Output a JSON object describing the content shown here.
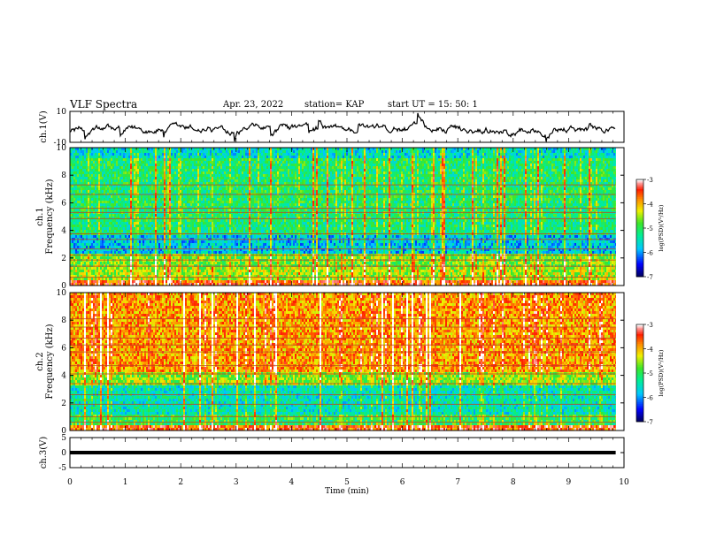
{
  "header": {
    "title": "VLF Spectra",
    "date": "Apr. 23, 2022",
    "station": "station= KAP",
    "start": "start  UT =   15: 50: 1"
  },
  "chart_data": [
    {
      "type": "line",
      "panel": "ch1-waveform",
      "ylabel": "ch.1(V)",
      "ylim": [
        -10,
        10
      ],
      "yticks": [
        "10",
        "-10"
      ],
      "xlim": [
        0,
        10
      ],
      "x_end": 9.85
    },
    {
      "type": "heatmap",
      "panel": "ch1-spectrogram",
      "ylabel_top": "ch.1",
      "ylabel": "Frequency (kHz)",
      "ylim": [
        0,
        10
      ],
      "yticks": [
        "0",
        "2",
        "4",
        "6",
        "8",
        "10"
      ],
      "xlim": [
        0,
        10
      ],
      "x_end": 9.85,
      "line_frequencies_khz": [
        0.6,
        1.4,
        1.85,
        2.2,
        2.65,
        3.35,
        3.75,
        4.85,
        5.3,
        5.6,
        6.6,
        7.3
      ],
      "colorbar": {
        "label": "log(PSD)(V²/Hz)",
        "range": [
          -7,
          -3
        ],
        "ticks": [
          "-3",
          "-4",
          "-5",
          "-6",
          "-7"
        ]
      }
    },
    {
      "type": "heatmap",
      "panel": "ch2-spectrogram",
      "ylabel_top": "ch.2",
      "ylabel": "Frequency (kHz)",
      "ylim": [
        0,
        10
      ],
      "yticks": [
        "0",
        "2",
        "4",
        "6",
        "8",
        "10"
      ],
      "xlim": [
        0,
        10
      ],
      "x_end": 9.85,
      "line_frequencies_khz": [
        0.6,
        1.0,
        1.9,
        2.6,
        3.4,
        4.1,
        4.7,
        5.7,
        6.2,
        6.7,
        7.5,
        8.1
      ],
      "colorbar": {
        "label": "log(PSD)(V²/Hz)",
        "range": [
          -7,
          -3
        ],
        "ticks": [
          "-3",
          "-4",
          "-5",
          "-6",
          "-7"
        ]
      }
    },
    {
      "type": "line",
      "panel": "ch3-waveform",
      "ylabel": "ch.3(V)",
      "ylim": [
        -5,
        5
      ],
      "yticks": [
        "5",
        "0",
        "-5"
      ],
      "xlim": [
        0,
        10
      ],
      "x_end": 9.85,
      "band": [
        -0.6,
        0.6
      ]
    }
  ],
  "xaxis": {
    "label": "Time (min)",
    "ticks": [
      "0",
      "1",
      "2",
      "3",
      "4",
      "5",
      "6",
      "7",
      "8",
      "9",
      "10"
    ]
  }
}
